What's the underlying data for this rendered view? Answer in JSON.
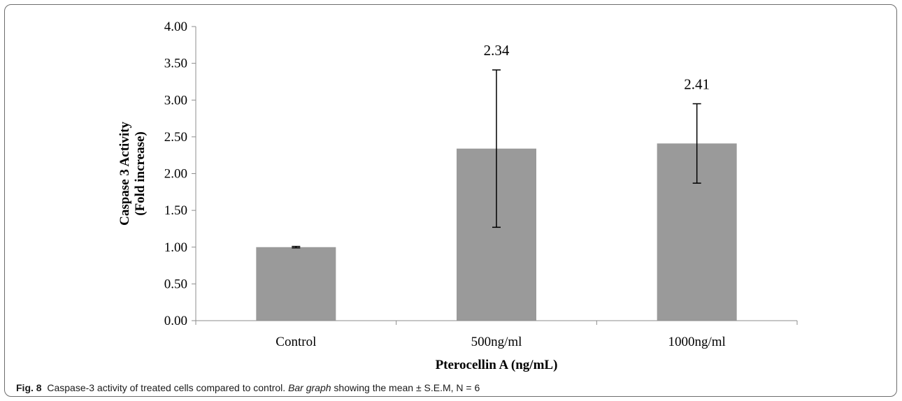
{
  "chart_data": {
    "type": "bar",
    "categories": [
      "Control",
      "500ng/ml",
      "1000ng/ml"
    ],
    "values": [
      1.0,
      2.34,
      2.41
    ],
    "error": [
      0.01,
      1.07,
      0.54
    ],
    "data_labels": [
      "",
      "2.34",
      "2.41"
    ],
    "xlabel": "Pterocellin A (ng/mL)",
    "ylabel_line1": "Caspase 3 Activity",
    "ylabel_line2": "(Fold increase)",
    "ylim": [
      0,
      4
    ],
    "yticks": [
      "0.00",
      "0.50",
      "1.00",
      "1.50",
      "2.00",
      "2.50",
      "3.00",
      "3.50",
      "4.00"
    ],
    "bar_color": "#9a9a9a",
    "grid": false,
    "legend": "none"
  },
  "caption": {
    "fig_label": "Fig. 8",
    "text_1": "Caspase-3 activity of treated cells compared to control. ",
    "text_italic": "Bar graph",
    "text_2": " showing the mean ± S.E.M, N = 6"
  }
}
